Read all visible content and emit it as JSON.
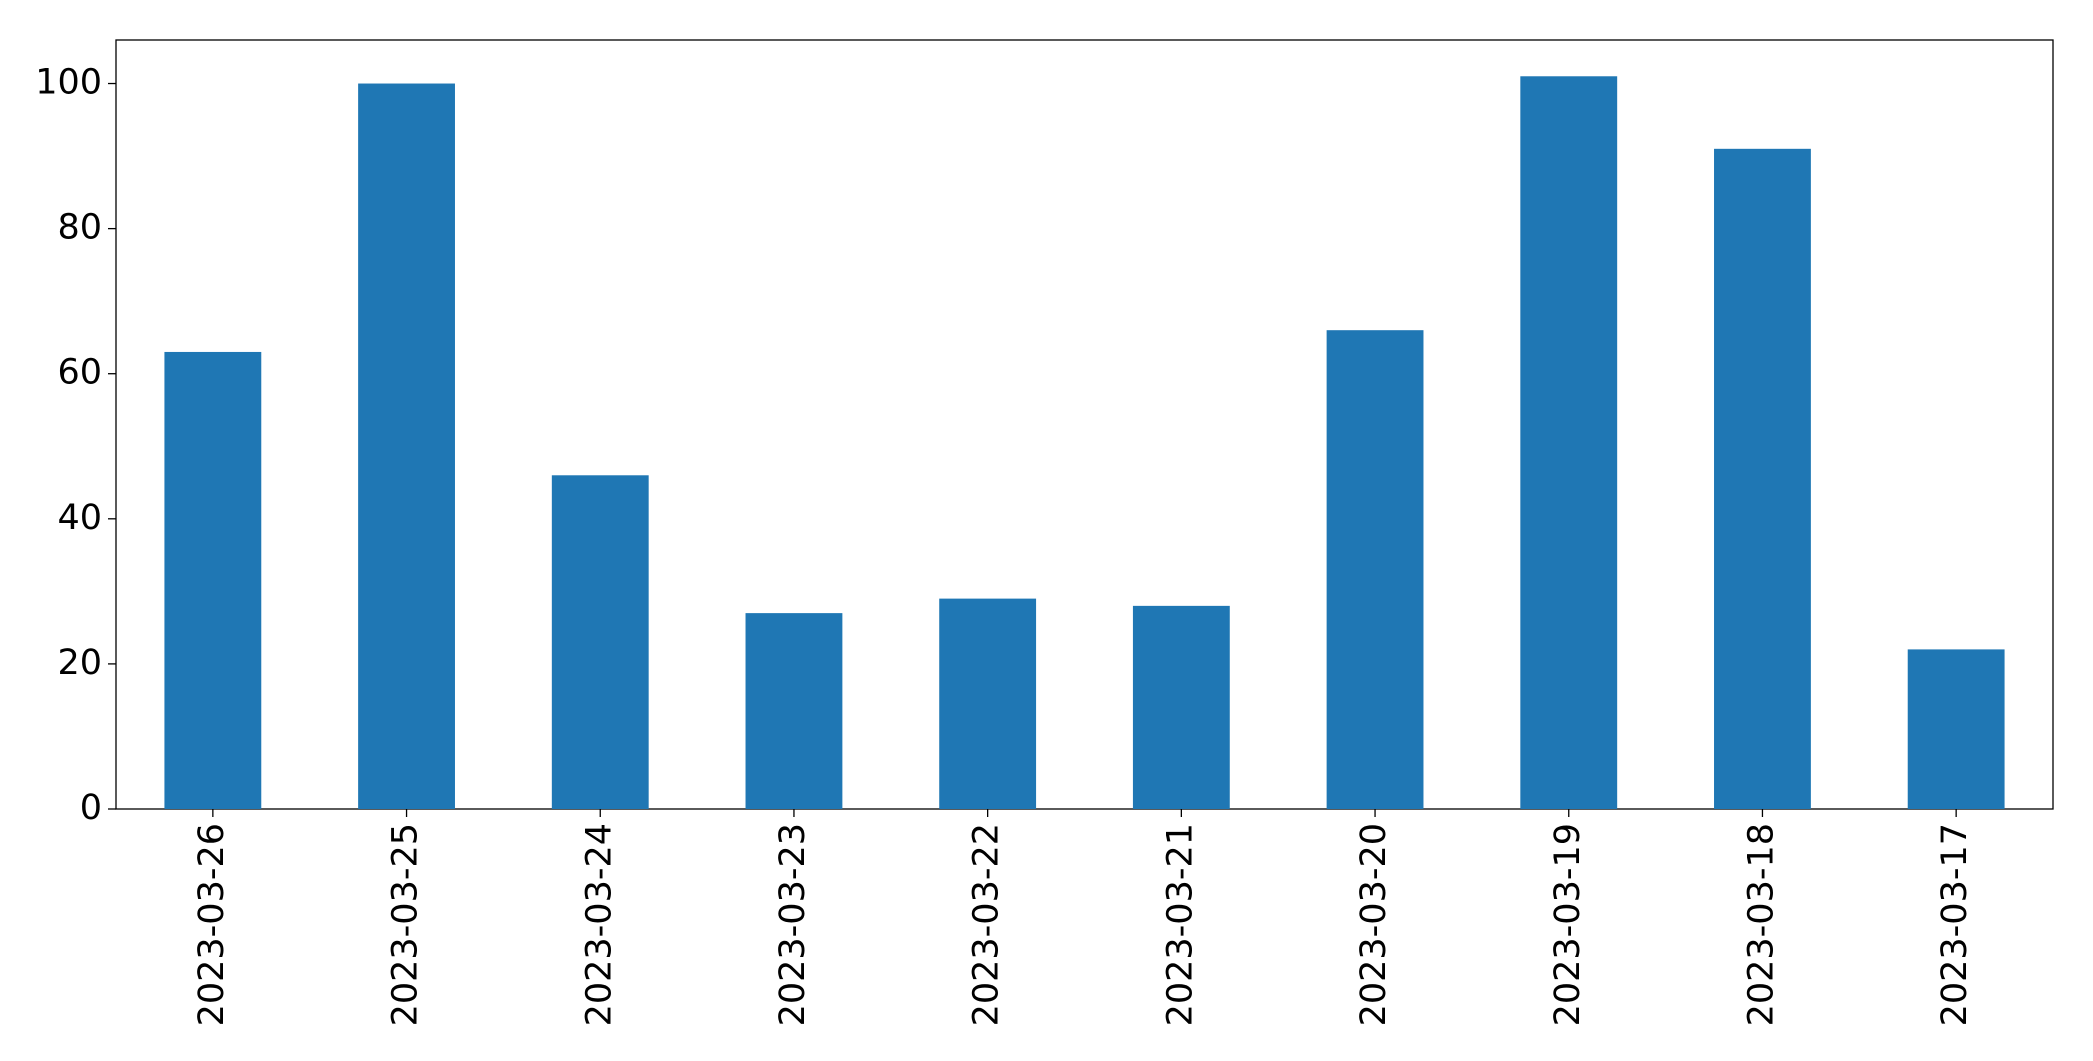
{
  "chart_data": {
    "type": "bar",
    "categories": [
      "2023-03-26",
      "2023-03-25",
      "2023-03-24",
      "2023-03-23",
      "2023-03-22",
      "2023-03-21",
      "2023-03-20",
      "2023-03-19",
      "2023-03-18",
      "2023-03-17"
    ],
    "values": [
      63,
      100,
      46,
      27,
      29,
      28,
      66,
      101,
      91,
      22
    ],
    "color": "#1f77b4",
    "ylim": [
      0,
      106
    ],
    "yticks": [
      0,
      20,
      40,
      60,
      80,
      100
    ],
    "grid": false
  }
}
